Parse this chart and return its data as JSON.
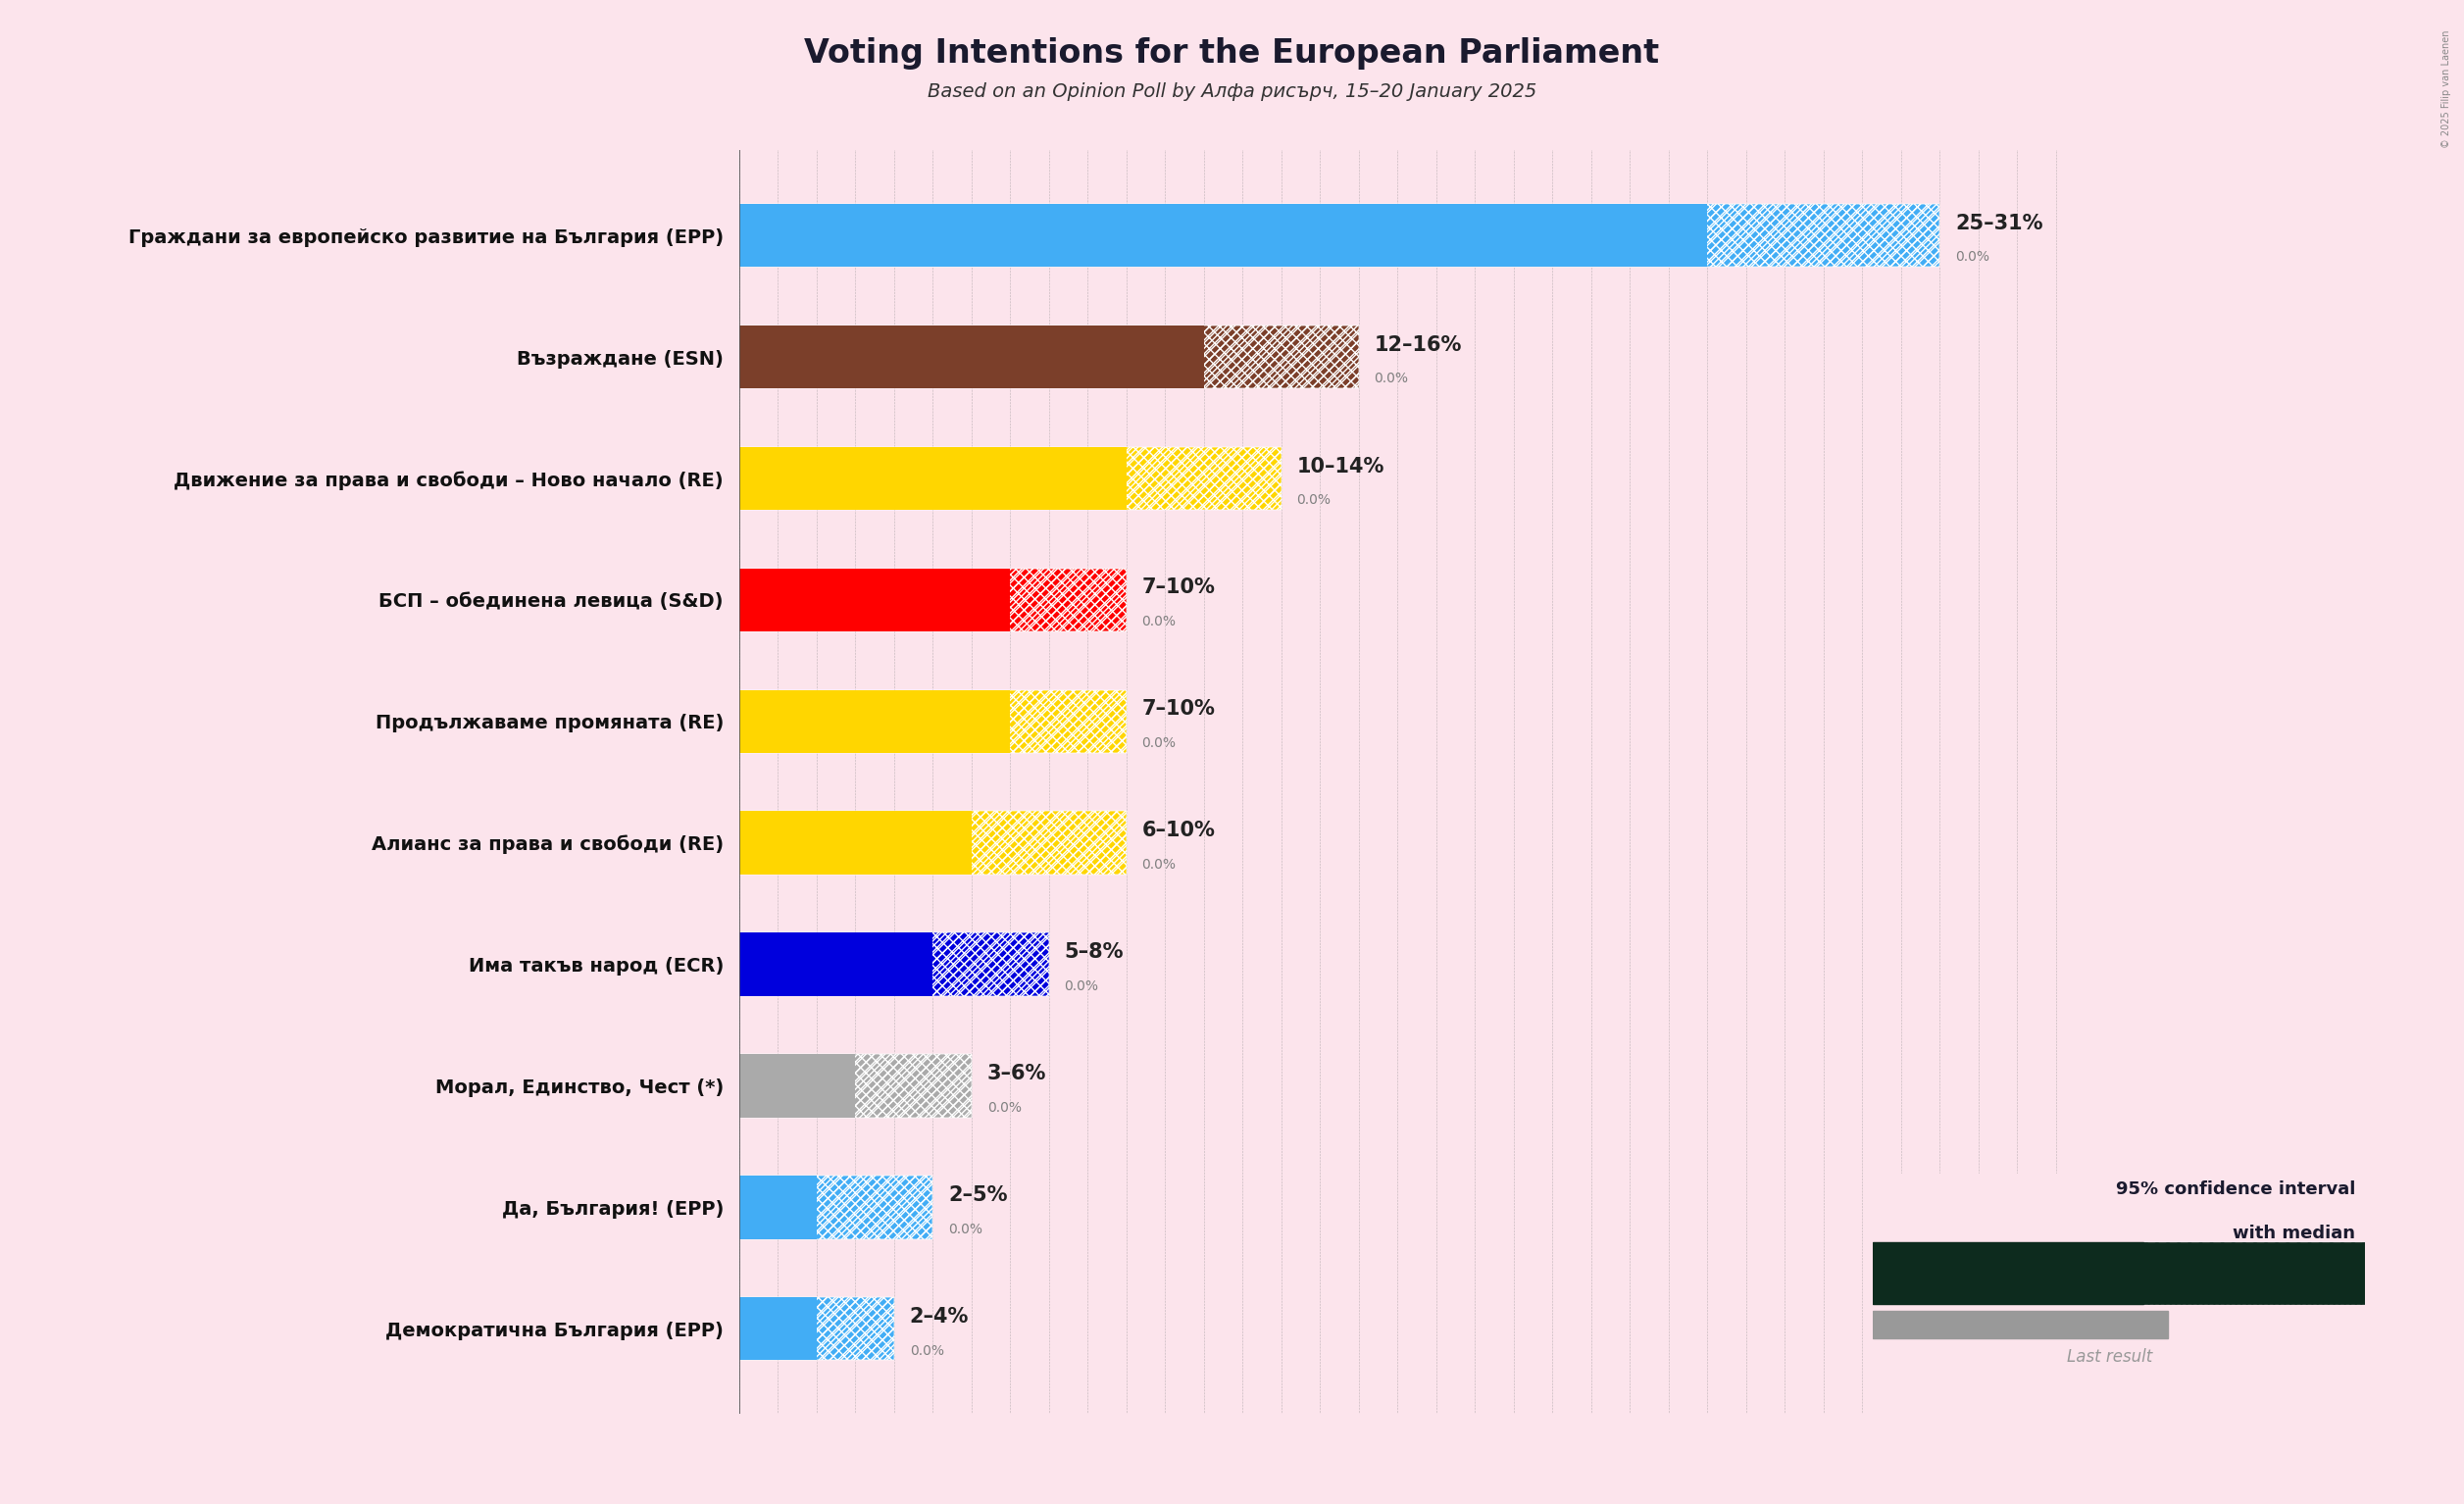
{
  "title": "Voting Intentions for the European Parliament",
  "subtitle": "Based on an Opinion Poll by Алфа рисърч, 15–20 January 2025",
  "background_color": "#fce4ec",
  "parties": [
    {
      "name": "Граждани за европейско развитие на България (EPP)",
      "low": 25,
      "median": 28,
      "high": 31,
      "last": 0.0,
      "color": "#42adf5",
      "label": "25–31%"
    },
    {
      "name": "Възраждане (ESN)",
      "low": 12,
      "median": 14,
      "high": 16,
      "last": 0.0,
      "color": "#7b3f2a",
      "label": "12–16%"
    },
    {
      "name": "Движение за права и свободи – Ново начало (RE)",
      "low": 10,
      "median": 12,
      "high": 14,
      "last": 0.0,
      "color": "#ffd600",
      "label": "10–14%"
    },
    {
      "name": "БСП – обединена левица (S&D)",
      "low": 7,
      "median": 8,
      "high": 10,
      "last": 0.0,
      "color": "#ff0000",
      "label": "7–10%"
    },
    {
      "name": "Продължаваме промяната (RE)",
      "low": 7,
      "median": 8,
      "high": 10,
      "last": 0.0,
      "color": "#ffd600",
      "label": "7–10%"
    },
    {
      "name": "Алианс за права и свободи (RE)",
      "low": 6,
      "median": 8,
      "high": 10,
      "last": 0.0,
      "color": "#ffd600",
      "label": "6–10%"
    },
    {
      "name": "Има такъв народ (ECR)",
      "low": 5,
      "median": 6,
      "high": 8,
      "last": 0.0,
      "color": "#0000dd",
      "label": "5–8%"
    },
    {
      "name": "Морал, Единство, Чест (*)",
      "low": 3,
      "median": 4,
      "high": 6,
      "last": 0.0,
      "color": "#aaaaaa",
      "label": "3–6%"
    },
    {
      "name": "Да, България! (EPP)",
      "low": 2,
      "median": 3,
      "high": 5,
      "last": 0.0,
      "color": "#42adf5",
      "label": "2–5%"
    },
    {
      "name": "Демократична България (EPP)",
      "low": 2,
      "median": 3,
      "high": 4,
      "last": 0.0,
      "color": "#42adf5",
      "label": "2–4%"
    }
  ],
  "xlim_max": 35,
  "legend_text1": "95% confidence interval",
  "legend_text2": "with median",
  "legend_text3": "Last result",
  "copyright": "© 2025 Filip van Laenen",
  "legend_solid_color": "#0d2b1e",
  "legend_gray_color": "#999999"
}
